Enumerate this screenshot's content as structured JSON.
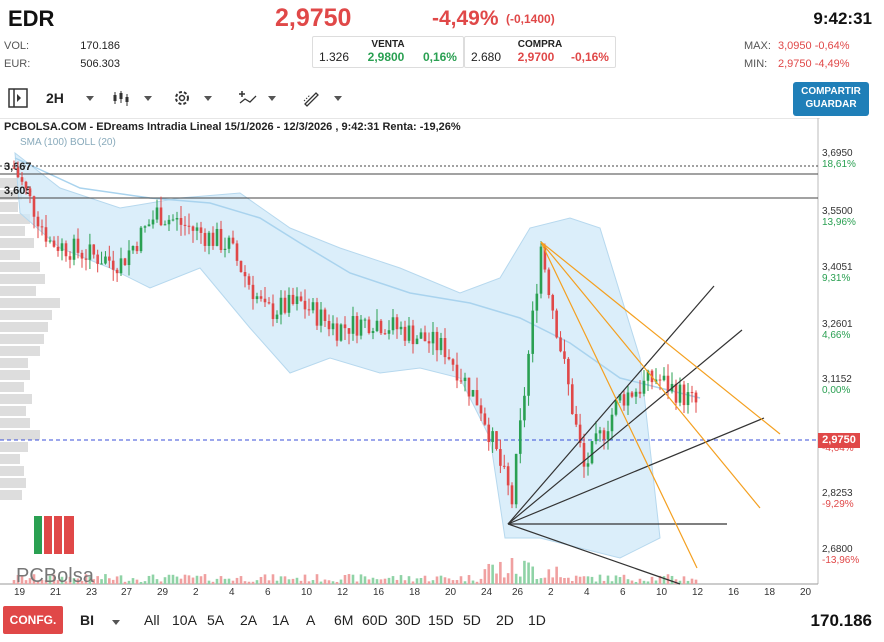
{
  "header": {
    "ticker": "EDR",
    "price": "2,9750",
    "change_pct": "-4,49%",
    "change_abs": "(-0,1400)",
    "time": "9:42:31"
  },
  "stats": {
    "vol_label": "VOL:",
    "vol_value": "170.186",
    "eur_label": "EUR:",
    "eur_value": "506.303"
  },
  "venta": {
    "title": "VENTA",
    "qty": "1.326",
    "price": "2,9800",
    "pct": "0,16%"
  },
  "compra": {
    "title": "COMPRA",
    "qty": "2.680",
    "price": "2,9700",
    "pct": "-0,16%"
  },
  "range": {
    "max_label": "MAX:",
    "max_value": "3,0950 -0,64%",
    "min_label": "MIN:",
    "min_value": "2,9750 -4,49%"
  },
  "toolbar": {
    "interval": "2H",
    "share_line1": "COMPARTIR",
    "share_line2": "GUARDAR"
  },
  "chart": {
    "title": "PCBOLSA.COM - EDreams Intradia Lineal 15/1/2026 - 12/3/2026 , 9:42:31 Renta: -19,26%",
    "legend": "SMA (100) BOLL (20)",
    "level_hi": "3,667",
    "level_lo": "3,605",
    "current_tag": "2,9750",
    "watermark": "PCBolsa",
    "y_ticks": [
      {
        "v": "3,6950",
        "p": "18,61%"
      },
      {
        "v": "3,5500",
        "p": "13,96%"
      },
      {
        "v": "3,4051",
        "p": "9,31%"
      },
      {
        "v": "3,2601",
        "p": "4,66%"
      },
      {
        "v": "3,1152",
        "p": "0,00%"
      },
      {
        "v": "",
        "p": "-4,64%"
      },
      {
        "v": "2,8253",
        "p": "-9,29%"
      },
      {
        "v": "2,6800",
        "p": "-13,96%"
      }
    ],
    "x_ticks": [
      "19",
      "21",
      "23",
      "27",
      "29",
      "2",
      "4",
      "6",
      "10",
      "12",
      "16",
      "18",
      "20",
      "24",
      "26",
      "2",
      "4",
      "6",
      "10",
      "12",
      "16",
      "18",
      "20"
    ]
  },
  "chart_data": {
    "type": "line",
    "title": "PCBOLSA.COM - EDreams Intradia Lineal 15/1/2026 - 12/3/2026 , 9:42:31 Renta: -19,26%",
    "xlabel": "",
    "ylabel": "",
    "ylim": [
      2.62,
      3.75
    ],
    "grid": false,
    "series": [
      {
        "name": "EDR",
        "x": [
          "19",
          "21",
          "23",
          "27",
          "29",
          "2",
          "4",
          "6",
          "10",
          "12",
          "16",
          "18",
          "20",
          "24",
          "26",
          "2",
          "4",
          "6",
          "10",
          "12"
        ],
        "values": [
          3.63,
          3.45,
          3.42,
          3.4,
          3.52,
          3.48,
          3.44,
          3.28,
          3.3,
          3.24,
          3.26,
          3.23,
          3.19,
          3.05,
          2.82,
          3.44,
          2.9,
          3.07,
          3.12,
          3.05
        ]
      }
    ]
  },
  "footer": {
    "confg": "CONFG.",
    "bi": "BI",
    "periods": [
      "All",
      "10A",
      "5A",
      "2A",
      "1A",
      "A",
      "6M",
      "60D",
      "30D",
      "15D",
      "5D",
      "2D",
      "1D"
    ],
    "volume": "170.186"
  }
}
